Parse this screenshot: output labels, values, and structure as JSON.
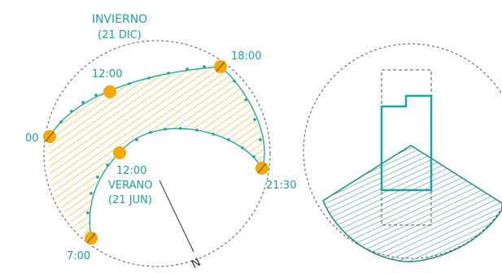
{
  "labels": {
    "winter_title": "INVIERNO",
    "winter_date": "(21 DIC)",
    "summer_title": "VERANO",
    "summer_date": "(21 JUN)",
    "winter_noon": "12:00",
    "summer_noon": "12:00",
    "time_18": "18:00",
    "time_00": "00",
    "time_2130": "21:30",
    "time_7": "7:00",
    "north": "N"
  },
  "colors": {
    "teal": "#1aa39a",
    "sun": "#f5a800",
    "hatch_orange": "#f0b232",
    "hatch_teal": "#1e8a80",
    "dashed": "#555555",
    "building": "#12a89e"
  },
  "icons": {
    "sun_marker": "sun-circle-icon",
    "north_arrow": "north-arrow-icon"
  }
}
